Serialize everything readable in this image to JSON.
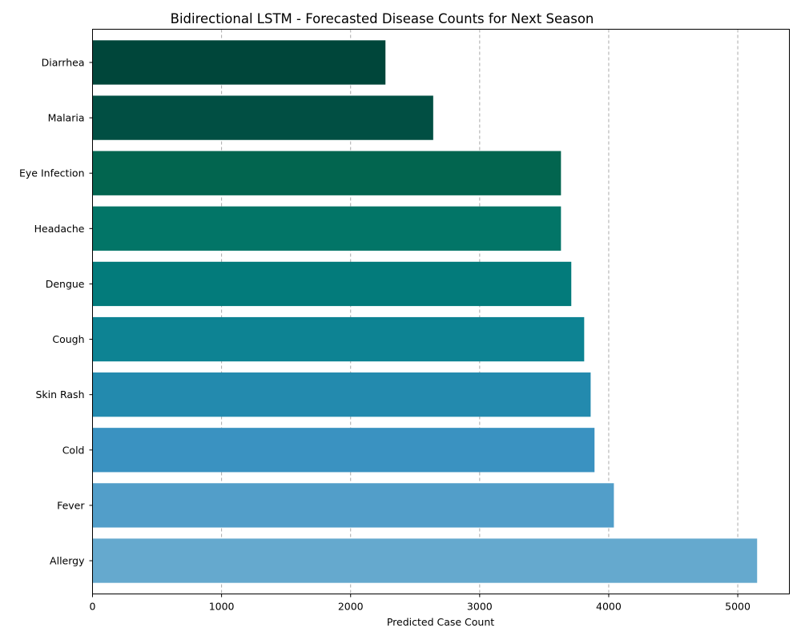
{
  "chart_data": {
    "type": "bar",
    "orientation": "horizontal",
    "title": "Bidirectional LSTM - Forecasted Disease Counts for Next Season",
    "xlabel": "Predicted Case Count",
    "ylabel": "",
    "xlim": [
      0,
      5400
    ],
    "xticks": [
      0,
      1000,
      2000,
      3000,
      4000,
      5000
    ],
    "grid": "x-dashed",
    "categories": [
      "Diarrhea",
      "Malaria",
      "Eye Infection",
      "Headache",
      "Dengue",
      "Cough",
      "Skin Rash",
      "Cold",
      "Fever",
      "Allergy"
    ],
    "values": [
      2270,
      2640,
      3630,
      3630,
      3710,
      3810,
      3860,
      3890,
      4040,
      5150
    ],
    "colors": [
      "#00463a",
      "#014f43",
      "#02654f",
      "#027567",
      "#037b7b",
      "#0d8393",
      "#238aae",
      "#3a92c1",
      "#529ec9",
      "#65a9ce"
    ]
  }
}
